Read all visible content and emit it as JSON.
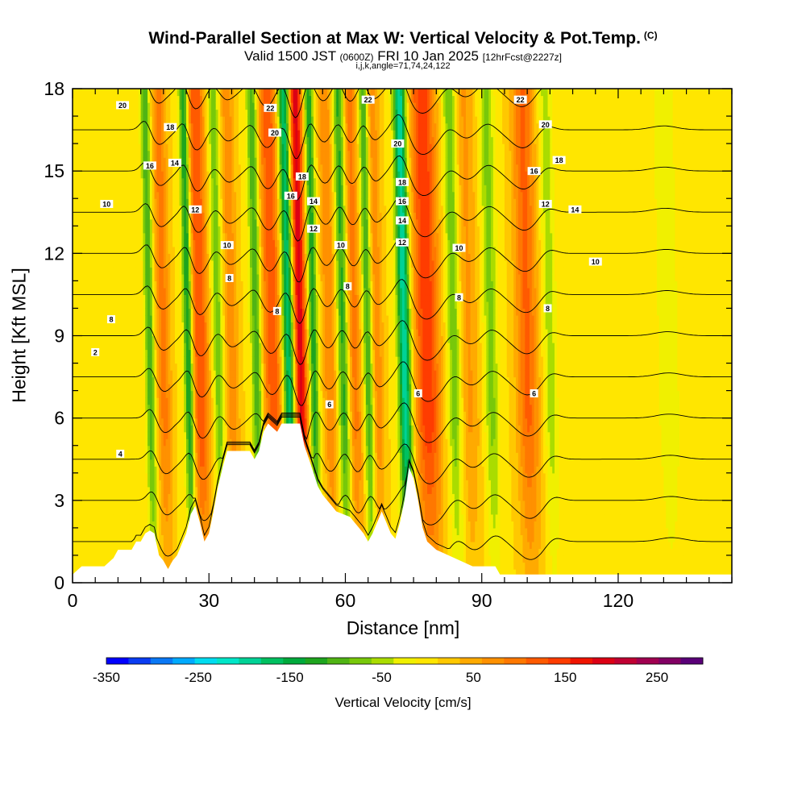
{
  "title": {
    "main": "Wind-Parallel Section at Max W: Vertical Velocity & Pot.Temp.",
    "copyright": "(C)",
    "valid_prefix": "Valid 1500 JST",
    "valid_utc": "(0600Z)",
    "valid_date": "FRI 10 Jan 2025",
    "forecast": "[12hrFcst@2227z]",
    "params": "i,j,k,angle=71,74,24,122"
  },
  "chart_data": {
    "type": "heatmap",
    "xlabel": "Distance [nm]",
    "ylabel": "Height [Kft MSL]",
    "xlim": [
      0,
      145
    ],
    "ylim": [
      0,
      18
    ],
    "x_ticks": [
      0,
      30,
      60,
      90,
      120
    ],
    "y_ticks": [
      0,
      3,
      6,
      9,
      12,
      15,
      18
    ],
    "x_minor_step": 5,
    "y_minor_step": 1,
    "background_w": 20,
    "updraft_bands": [
      {
        "x": 21,
        "w": 90,
        "width": 1.6
      },
      {
        "x": 29,
        "w": 130,
        "width": 2.0
      },
      {
        "x": 36,
        "w": 70,
        "width": 1.6
      },
      {
        "x": 45,
        "w": 120,
        "width": 2.5
      },
      {
        "x": 51,
        "w": 200,
        "width": 1.5
      },
      {
        "x": 57.5,
        "w": 80,
        "width": 1.5
      },
      {
        "x": 63,
        "w": 90,
        "width": 1.5
      },
      {
        "x": 68,
        "w": 70,
        "width": 1.5
      },
      {
        "x": 79,
        "w": 150,
        "width": 2.8
      },
      {
        "x": 88,
        "w": 60,
        "width": 2.5
      },
      {
        "x": 101,
        "w": 110,
        "width": 2.5
      }
    ],
    "downdraft_bands": [
      {
        "x": 18,
        "w": -120,
        "width": 1.0
      },
      {
        "x": 26.5,
        "w": -170,
        "width": 1.0
      },
      {
        "x": 33,
        "w": -90,
        "width": 1.2
      },
      {
        "x": 41.5,
        "w": -130,
        "width": 1.2
      },
      {
        "x": 48.5,
        "w": -210,
        "width": 1.4
      },
      {
        "x": 54,
        "w": -140,
        "width": 1.0
      },
      {
        "x": 60.5,
        "w": -130,
        "width": 1.2
      },
      {
        "x": 66,
        "w": -130,
        "width": 1.0
      },
      {
        "x": 74,
        "w": -220,
        "width": 1.4
      },
      {
        "x": 85,
        "w": -100,
        "width": 1.6
      },
      {
        "x": 93,
        "w": -80,
        "width": 1.6
      },
      {
        "x": 106,
        "w": -60,
        "width": 1.5
      },
      {
        "x": 132,
        "w": -40,
        "width": 2.5
      }
    ],
    "terrain_profile": [
      [
        0,
        0.3
      ],
      [
        2,
        0.6
      ],
      [
        7,
        0.6
      ],
      [
        9,
        0.9
      ],
      [
        10,
        1.2
      ],
      [
        13,
        1.2
      ],
      [
        14,
        1.5
      ],
      [
        15,
        1.5
      ],
      [
        16,
        1.8
      ],
      [
        17,
        1.9
      ],
      [
        18,
        1.8
      ],
      [
        19,
        1.0
      ],
      [
        20,
        0.8
      ],
      [
        21,
        0.5
      ],
      [
        22,
        0.8
      ],
      [
        23,
        1.0
      ],
      [
        24,
        1.4
      ],
      [
        25,
        1.8
      ],
      [
        26,
        2.5
      ],
      [
        27,
        2.8
      ],
      [
        28,
        2.2
      ],
      [
        29,
        1.5
      ],
      [
        30,
        1.8
      ],
      [
        31,
        2.6
      ],
      [
        32,
        3.5
      ],
      [
        33,
        4.2
      ],
      [
        34,
        4.8
      ],
      [
        39,
        4.8
      ],
      [
        40,
        4.5
      ],
      [
        41,
        4.8
      ],
      [
        42,
        5.5
      ],
      [
        43,
        5.8
      ],
      [
        45,
        5.5
      ],
      [
        46,
        5.8
      ],
      [
        50,
        5.8
      ],
      [
        51,
        5.0
      ],
      [
        52,
        4.5
      ],
      [
        53,
        4.0
      ],
      [
        54,
        3.5
      ],
      [
        55,
        3.2
      ],
      [
        56,
        3.0
      ],
      [
        57,
        2.8
      ],
      [
        58,
        2.6
      ],
      [
        61,
        2.4
      ],
      [
        62,
        2.2
      ],
      [
        63,
        2.0
      ],
      [
        64,
        1.8
      ],
      [
        65,
        1.5
      ],
      [
        66,
        1.8
      ],
      [
        67,
        2.2
      ],
      [
        68,
        2.6
      ],
      [
        69,
        2.2
      ],
      [
        70,
        1.8
      ],
      [
        71,
        1.6
      ],
      [
        72,
        2.2
      ],
      [
        73,
        3.0
      ],
      [
        74,
        4.2
      ],
      [
        75,
        3.8
      ],
      [
        76,
        3.0
      ],
      [
        77,
        2.0
      ],
      [
        78,
        1.5
      ],
      [
        80,
        1.2
      ],
      [
        84,
        0.9
      ],
      [
        88,
        0.6
      ],
      [
        93,
        0.6
      ],
      [
        94,
        0.3
      ],
      [
        145,
        0.3
      ]
    ],
    "theta_levels": [
      2,
      4,
      6,
      8,
      10,
      12,
      14,
      16,
      18,
      20,
      22,
      24
    ],
    "theta_labels": [
      {
        "x": 11,
        "y": 17.4,
        "text": "20"
      },
      {
        "x": 21.5,
        "y": 16.6,
        "text": "18"
      },
      {
        "x": 17,
        "y": 15.2,
        "text": "16"
      },
      {
        "x": 22.5,
        "y": 15.3,
        "text": "14"
      },
      {
        "x": 7.5,
        "y": 13.8,
        "text": "10"
      },
      {
        "x": 27,
        "y": 13.6,
        "text": "12"
      },
      {
        "x": 34,
        "y": 12.3,
        "text": "10"
      },
      {
        "x": 34.5,
        "y": 11.1,
        "text": "8"
      },
      {
        "x": 8.5,
        "y": 9.6,
        "text": "8"
      },
      {
        "x": 43.5,
        "y": 17.3,
        "text": "22"
      },
      {
        "x": 44.5,
        "y": 16.4,
        "text": "20"
      },
      {
        "x": 50.5,
        "y": 14.8,
        "text": "18"
      },
      {
        "x": 48,
        "y": 14.1,
        "text": "16"
      },
      {
        "x": 53,
        "y": 13.9,
        "text": "14"
      },
      {
        "x": 53,
        "y": 12.9,
        "text": "12"
      },
      {
        "x": 59,
        "y": 12.3,
        "text": "10"
      },
      {
        "x": 60.5,
        "y": 10.8,
        "text": "8"
      },
      {
        "x": 45,
        "y": 9.9,
        "text": "8"
      },
      {
        "x": 65,
        "y": 17.6,
        "text": "22"
      },
      {
        "x": 71.5,
        "y": 16.0,
        "text": "20"
      },
      {
        "x": 72.5,
        "y": 14.6,
        "text": "18"
      },
      {
        "x": 72.5,
        "y": 13.9,
        "text": "16"
      },
      {
        "x": 72.5,
        "y": 13.2,
        "text": "14"
      },
      {
        "x": 72.5,
        "y": 12.4,
        "text": "12"
      },
      {
        "x": 85,
        "y": 12.2,
        "text": "10"
      },
      {
        "x": 85,
        "y": 10.4,
        "text": "8"
      },
      {
        "x": 76,
        "y": 6.9,
        "text": "6"
      },
      {
        "x": 56.5,
        "y": 6.5,
        "text": "6"
      },
      {
        "x": 98.5,
        "y": 17.6,
        "text": "22"
      },
      {
        "x": 104,
        "y": 16.7,
        "text": "20"
      },
      {
        "x": 107,
        "y": 15.4,
        "text": "18"
      },
      {
        "x": 101.5,
        "y": 15.0,
        "text": "16"
      },
      {
        "x": 104,
        "y": 13.8,
        "text": "12"
      },
      {
        "x": 110.5,
        "y": 13.6,
        "text": "14"
      },
      {
        "x": 115,
        "y": 11.7,
        "text": "10"
      },
      {
        "x": 104.5,
        "y": 10.0,
        "text": "8"
      },
      {
        "x": 101.5,
        "y": 6.9,
        "text": "6"
      },
      {
        "x": 10.5,
        "y": 4.7,
        "text": "4"
      },
      {
        "x": 5,
        "y": 8.4,
        "text": "2"
      }
    ],
    "colorbar": {
      "label": "Vertical Velocity [cm/s]",
      "min": -350,
      "max": 300,
      "step": 25,
      "tick_labels": [
        "-350",
        "-250",
        "-150",
        "-50",
        "50",
        "150",
        "250"
      ],
      "colors": [
        "#0000ff",
        "#0a3cf2",
        "#0a78f5",
        "#00aaff",
        "#00dcf0",
        "#00e6c8",
        "#00d296",
        "#00c060",
        "#00aa3c",
        "#1ea51e",
        "#50b414",
        "#78c80a",
        "#aadc00",
        "#f0f000",
        "#ffe600",
        "#ffc800",
        "#ffaa00",
        "#ff9100",
        "#ff7800",
        "#ff5a00",
        "#ff3c00",
        "#f01400",
        "#dc0014",
        "#c00032",
        "#a00050",
        "#820064",
        "#5a0078"
      ]
    }
  }
}
